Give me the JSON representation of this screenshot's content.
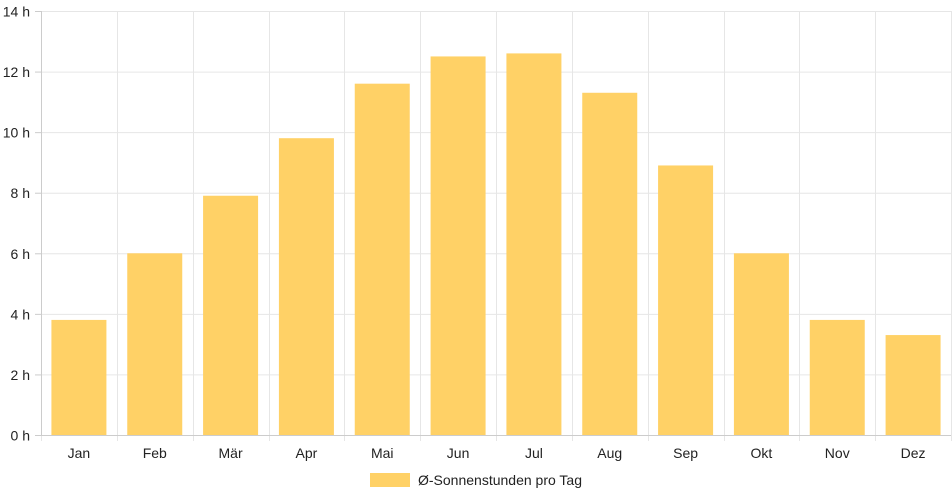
{
  "chart_data": {
    "type": "bar",
    "categories": [
      "Jan",
      "Feb",
      "Mär",
      "Apr",
      "Mai",
      "Jun",
      "Jul",
      "Aug",
      "Sep",
      "Okt",
      "Nov",
      "Dez"
    ],
    "series": [
      {
        "name": "Ø-Sonnenstunden pro Tag",
        "values": [
          3.8,
          6.0,
          7.9,
          9.8,
          11.6,
          12.5,
          12.6,
          11.3,
          8.9,
          6.0,
          3.8,
          3.3
        ]
      }
    ],
    "ylim": [
      0,
      14
    ],
    "yticks": [
      0,
      2,
      4,
      6,
      8,
      10,
      12,
      14
    ],
    "ytick_suffix": " h",
    "grid": true,
    "legend_position": "bottom",
    "colors": {
      "bar": "#ffd166",
      "grid": "#e6e6e6",
      "axis": "#cccccc",
      "text": "#222222"
    }
  }
}
